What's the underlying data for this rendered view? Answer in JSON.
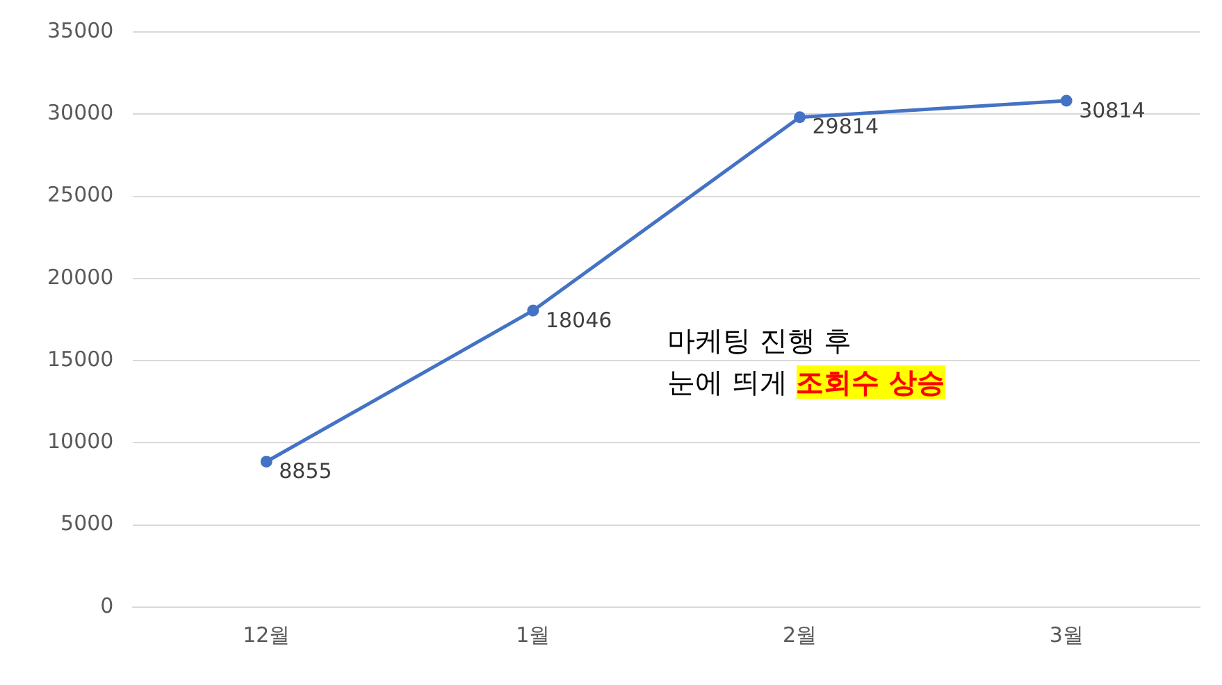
{
  "chart_data": {
    "type": "line",
    "categories": [
      "12월",
      "1월",
      "2월",
      "3월"
    ],
    "series": [
      {
        "color": "#4472c4",
        "values": [
          8855,
          18046,
          29814,
          30814
        ]
      }
    ],
    "ylim": [
      0,
      35000
    ],
    "yticks": [
      0,
      5000,
      10000,
      15000,
      20000,
      25000,
      30000,
      35000
    ],
    "grid": "y",
    "legend": false,
    "marker": "circle",
    "line_style": "solid",
    "data_labels": true,
    "annotations": [
      "마케팅 진행 후",
      "눈에 띄게",
      "조회수 상승"
    ]
  }
}
